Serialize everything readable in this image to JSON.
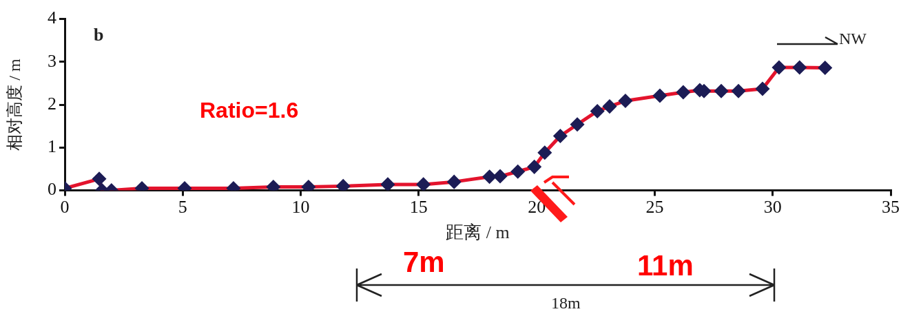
{
  "chart_data": {
    "type": "line",
    "xlabel": "距离 / m",
    "ylabel": "相对高度 / m",
    "x": [
      0,
      1.46,
      1.58,
      1.98,
      3.27,
      5.08,
      7.15,
      8.84,
      10.33,
      11.8,
      13.69,
      15.2,
      16.5,
      18.0,
      18.45,
      19.2,
      19.9,
      20.34,
      21.0,
      21.72,
      22.57,
      23.09,
      23.76,
      25.22,
      26.21,
      26.91,
      27.09,
      27.82,
      28.55,
      29.57,
      30.27,
      31.14,
      32.22
    ],
    "series": [
      {
        "color": "#e3142d",
        "values": [
          0.05,
          0.27,
          0,
          0,
          0.05,
          0.05,
          0.05,
          0.08,
          0.08,
          0.1,
          0.14,
          0.14,
          0.2,
          0.32,
          0.33,
          0.44,
          0.55,
          0.88,
          1.27,
          1.54,
          1.85,
          1.96,
          2.09,
          2.21,
          2.29,
          2.34,
          2.32,
          2.32,
          2.32,
          2.37,
          2.87,
          2.87,
          2.86
        ]
      }
    ],
    "xlim": [
      0,
      35
    ],
    "xticks": [
      0,
      5,
      10,
      15,
      20,
      25,
      30,
      35
    ],
    "ylim": [
      0,
      4
    ],
    "yticks": [
      0,
      1,
      2,
      3,
      4
    ],
    "grid": false,
    "legend": false,
    "marker": "diamond",
    "line_style": "solid",
    "annotations": [
      "b",
      "Ratio=1.6",
      "NW",
      "7m",
      "11m",
      "18m"
    ]
  }
}
